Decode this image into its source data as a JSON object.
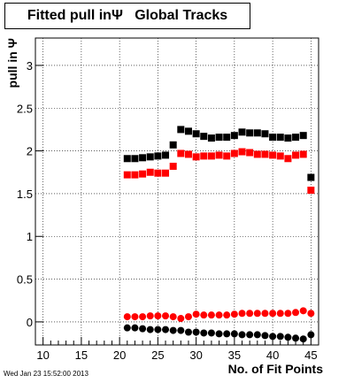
{
  "title": "Fitted pull inΨ   Global Tracks",
  "footer_timestamp": "Wed Jan 23 15:52:00 2013",
  "chart_data": {
    "type": "scatter",
    "title": "Fitted pull inΨ   Global Tracks",
    "xlabel": "No. of Fit Points",
    "ylabel": "pull in  Ψ",
    "xlim": [
      9,
      46
    ],
    "ylim": [
      -0.27,
      3.32
    ],
    "xticks": [
      10,
      15,
      20,
      25,
      30,
      35,
      40,
      45
    ],
    "xtick_labels": [
      "10",
      "15",
      "20",
      "25",
      "30",
      "35",
      "40",
      "45"
    ],
    "yticks": [
      0,
      0.5,
      1,
      1.5,
      2,
      2.5,
      3
    ],
    "ytick_labels": [
      "0",
      "0.5",
      "1",
      "1.5",
      "2",
      "2.5",
      "3"
    ],
    "grid": true,
    "series": [
      {
        "color": "#000000",
        "marker": "square",
        "x": [
          21,
          22,
          23,
          24,
          25,
          26,
          27,
          28,
          29,
          30,
          31,
          32,
          33,
          34,
          35,
          36,
          37,
          38,
          39,
          40,
          41,
          42,
          43,
          44,
          45
        ],
        "values": [
          1.91,
          1.91,
          1.92,
          1.93,
          1.94,
          1.95,
          2.07,
          2.25,
          2.23,
          2.2,
          2.17,
          2.15,
          2.16,
          2.16,
          2.18,
          2.22,
          2.21,
          2.21,
          2.2,
          2.16,
          2.16,
          2.15,
          2.16,
          2.18,
          1.69
        ]
      },
      {
        "color": "#ff0000",
        "marker": "square",
        "x": [
          21,
          22,
          23,
          24,
          25,
          26,
          27,
          28,
          29,
          30,
          31,
          32,
          33,
          34,
          35,
          36,
          37,
          38,
          39,
          40,
          41,
          42,
          43,
          44,
          45
        ],
        "values": [
          1.72,
          1.72,
          1.73,
          1.75,
          1.74,
          1.74,
          1.82,
          1.97,
          1.96,
          1.93,
          1.94,
          1.94,
          1.95,
          1.94,
          1.97,
          1.99,
          1.98,
          1.96,
          1.96,
          1.95,
          1.94,
          1.91,
          1.95,
          1.96,
          1.54
        ]
      },
      {
        "color": "#ff0000",
        "marker": "circle",
        "x": [
          21,
          22,
          23,
          24,
          25,
          26,
          27,
          28,
          29,
          30,
          31,
          32,
          33,
          34,
          35,
          36,
          37,
          38,
          39,
          40,
          41,
          42,
          43,
          44,
          45
        ],
        "values": [
          0.06,
          0.06,
          0.06,
          0.07,
          0.07,
          0.07,
          0.06,
          0.04,
          0.06,
          0.09,
          0.08,
          0.08,
          0.08,
          0.08,
          0.09,
          0.1,
          0.1,
          0.1,
          0.1,
          0.1,
          0.1,
          0.1,
          0.11,
          0.13,
          0.1
        ]
      },
      {
        "color": "#000000",
        "marker": "circle",
        "x": [
          21,
          22,
          23,
          24,
          25,
          26,
          27,
          28,
          29,
          30,
          31,
          32,
          33,
          34,
          35,
          36,
          37,
          38,
          39,
          40,
          41,
          42,
          43,
          44,
          45
        ],
        "values": [
          -0.07,
          -0.07,
          -0.08,
          -0.09,
          -0.09,
          -0.09,
          -0.1,
          -0.1,
          -0.12,
          -0.12,
          -0.13,
          -0.13,
          -0.14,
          -0.14,
          -0.14,
          -0.15,
          -0.15,
          -0.15,
          -0.16,
          -0.17,
          -0.17,
          -0.18,
          -0.19,
          -0.2,
          -0.15
        ]
      }
    ]
  }
}
